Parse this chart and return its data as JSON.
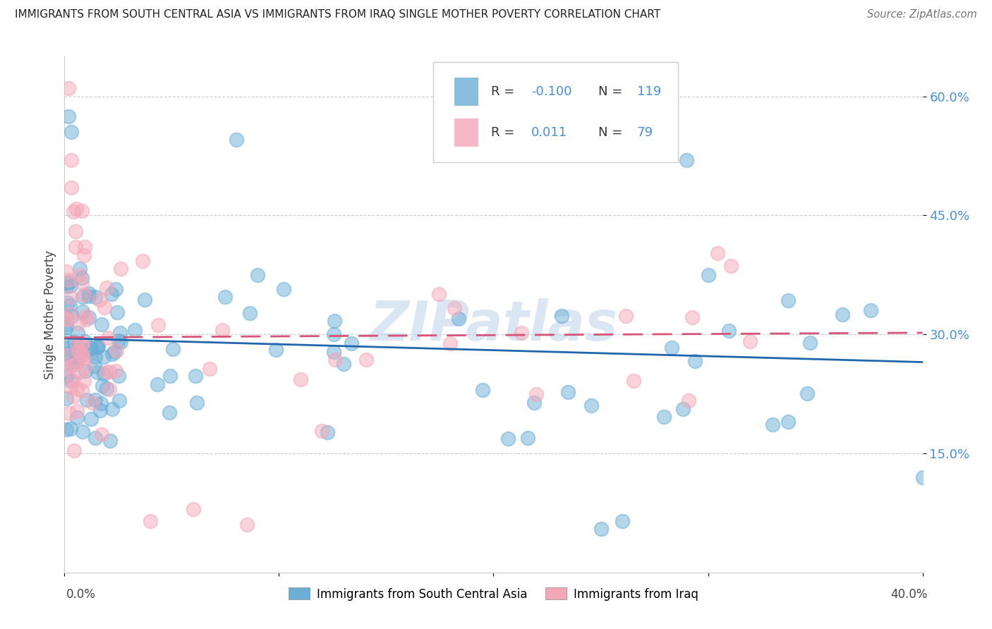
{
  "title": "IMMIGRANTS FROM SOUTH CENTRAL ASIA VS IMMIGRANTS FROM IRAQ SINGLE MOTHER POVERTY CORRELATION CHART",
  "source": "Source: ZipAtlas.com",
  "ylabel": "Single Mother Poverty",
  "legend_label1": "Immigrants from South Central Asia",
  "legend_label2": "Immigrants from Iraq",
  "R1": "-0.100",
  "N1": "119",
  "R2": "0.011",
  "N2": "79",
  "color1": "#6baed6",
  "color2": "#f4a7b9",
  "trendline1_color": "#2166ac",
  "trendline2_color": "#d6537a",
  "watermark": "ZIPatlas",
  "background_color": "#ffffff",
  "grid_color": "#cccccc",
  "xlim": [
    0.0,
    0.4
  ],
  "ylim": [
    0.0,
    0.65
  ],
  "ytick_vals": [
    0.15,
    0.3,
    0.45,
    0.6
  ]
}
